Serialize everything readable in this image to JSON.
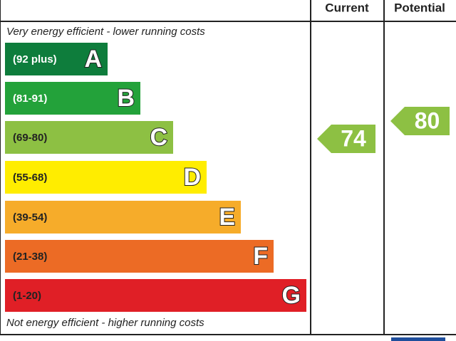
{
  "header": {
    "current": "Current",
    "potential": "Potential"
  },
  "top_note": "Very energy efficient - lower running costs",
  "bottom_note": "Not energy efficient - higher running costs",
  "bands": [
    {
      "range": "(92 plus)",
      "letter": "A",
      "color": "#0e7d3c",
      "text_color": "#ffffff"
    },
    {
      "range": "(81-91)",
      "letter": "B",
      "color": "#23a23a",
      "text_color": "#ffffff"
    },
    {
      "range": "(69-80)",
      "letter": "C",
      "color": "#8dc043",
      "text_color": "#222222"
    },
    {
      "range": "(55-68)",
      "letter": "D",
      "color": "#ffed00",
      "text_color": "#222222"
    },
    {
      "range": "(39-54)",
      "letter": "E",
      "color": "#f6ac2a",
      "text_color": "#222222"
    },
    {
      "range": "(21-38)",
      "letter": "F",
      "color": "#ec6b25",
      "text_color": "#222222"
    },
    {
      "range": "(1-20)",
      "letter": "G",
      "color": "#e01f26",
      "text_color": "#222222"
    }
  ],
  "current": {
    "value": 74,
    "color": "#8dc043"
  },
  "potential": {
    "value": 80,
    "color": "#8dc043"
  }
}
